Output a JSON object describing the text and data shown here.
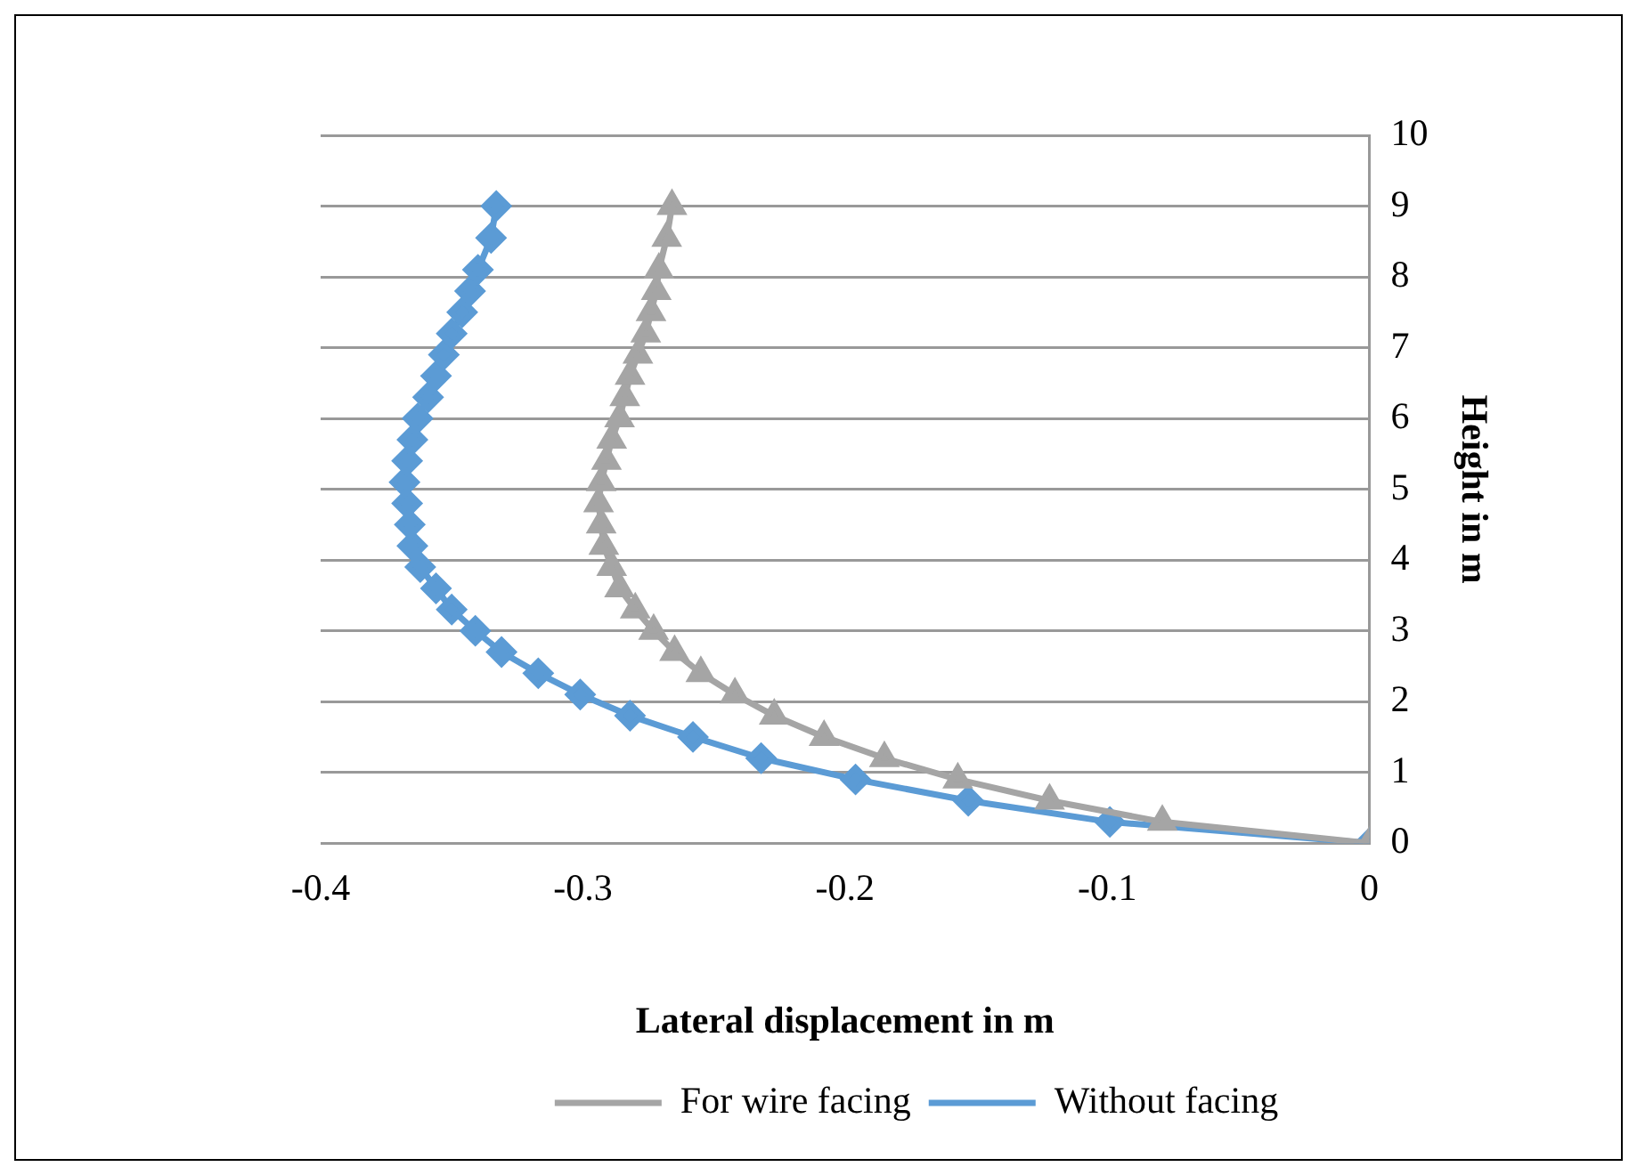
{
  "chart_data": {
    "type": "line",
    "xlabel": "Lateral displacement in m",
    "ylabel": "Height in m",
    "xlim": [
      -0.4,
      0
    ],
    "xticks": [
      -0.4,
      -0.3,
      -0.2,
      -0.1,
      0
    ],
    "ylim": [
      0,
      10
    ],
    "yticks": [
      0,
      1,
      2,
      3,
      4,
      5,
      6,
      7,
      8,
      9,
      10
    ],
    "grid": "y",
    "legend": "bottom",
    "line_style": "solid",
    "series": [
      {
        "name": "For wire facing",
        "color": "#a5a5a5",
        "marker": "triangle",
        "x": [
          0,
          -0.079,
          -0.122,
          -0.157,
          -0.185,
          -0.208,
          -0.227,
          -0.242,
          -0.255,
          -0.265,
          -0.273,
          -0.28,
          -0.286,
          -0.289,
          -0.292,
          -0.293,
          -0.294,
          -0.293,
          -0.291,
          -0.289,
          -0.286,
          -0.284,
          -0.282,
          -0.279,
          -0.276,
          -0.274,
          -0.272,
          -0.271,
          -0.268,
          -0.266
        ],
        "values": [
          0,
          0.3,
          0.6,
          0.9,
          1.2,
          1.5,
          1.8,
          2.1,
          2.4,
          2.7,
          3,
          3.3,
          3.6,
          3.9,
          4.2,
          4.5,
          4.8,
          5.1,
          5.4,
          5.7,
          6,
          6.3,
          6.6,
          6.9,
          7.2,
          7.5,
          7.8,
          8.1,
          8.55,
          9
        ]
      },
      {
        "name": "Without facing",
        "color": "#5b9bd5",
        "marker": "diamond",
        "x": [
          0,
          -0.099,
          -0.153,
          -0.196,
          -0.232,
          -0.258,
          -0.282,
          -0.301,
          -0.317,
          -0.331,
          -0.341,
          -0.35,
          -0.356,
          -0.362,
          -0.365,
          -0.366,
          -0.367,
          -0.368,
          -0.367,
          -0.365,
          -0.363,
          -0.359,
          -0.356,
          -0.353,
          -0.35,
          -0.346,
          -0.343,
          -0.34,
          -0.335,
          -0.333
        ],
        "values": [
          0,
          0.3,
          0.6,
          0.9,
          1.2,
          1.5,
          1.8,
          2.1,
          2.4,
          2.7,
          3,
          3.3,
          3.6,
          3.9,
          4.2,
          4.5,
          4.8,
          5.1,
          5.4,
          5.7,
          6,
          6.3,
          6.6,
          6.9,
          7.2,
          7.5,
          7.8,
          8.1,
          8.55,
          9
        ]
      }
    ]
  }
}
